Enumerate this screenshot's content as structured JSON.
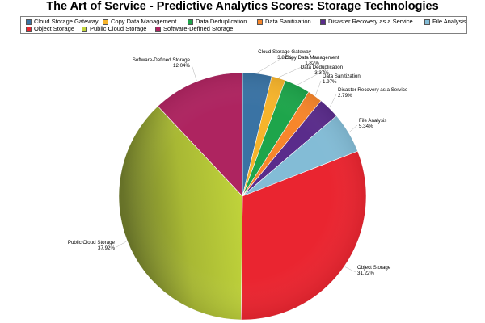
{
  "chart_data": {
    "type": "pie",
    "title": "The Art of Service - Predictive Analytics Scores: Storage Technologies",
    "legend_position": "top",
    "slices": [
      {
        "name": "Cloud Storage Gateway",
        "value": 3.82,
        "label": "3.82%",
        "color": "#3a73a4"
      },
      {
        "name": "Copy Data Management",
        "value": 1.82,
        "label": "1.82%",
        "color": "#f6b42c"
      },
      {
        "name": "Data Deduplication",
        "value": 3.37,
        "label": "3.37%",
        "color": "#1ea54b"
      },
      {
        "name": "Data Sanitization",
        "value": 1.97,
        "label": "1.97%",
        "color": "#f7862b"
      },
      {
        "name": "Disaster Recovery as a Service",
        "value": 2.79,
        "label": "2.79%",
        "color": "#5a2c8b"
      },
      {
        "name": "File Analysis",
        "value": 5.34,
        "label": "5.34%",
        "color": "#83bcd6"
      },
      {
        "name": "Object Storage",
        "value": 31.22,
        "label": "31.22%",
        "color": "#ea2530"
      },
      {
        "name": "Public Cloud Storage",
        "value": 37.92,
        "label": "37.92%",
        "color": "#c2d53c"
      },
      {
        "name": "Software-Defined Storage",
        "value": 12.04,
        "label": "12.04%",
        "color": "#ae2460"
      }
    ]
  }
}
